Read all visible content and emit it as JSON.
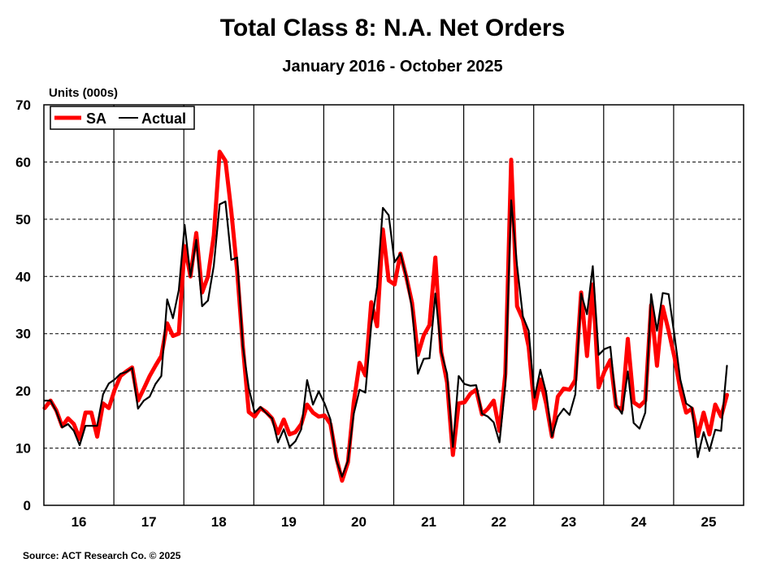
{
  "chart_data": {
    "type": "line",
    "title": "Total Class 8: N.A. Net Orders",
    "subtitle": "January 2016 - October 2025",
    "ylabel": "Units (000s)",
    "xlabel": "",
    "source": "Source: ACT Research Co. © 2025",
    "ylim": [
      0,
      70
    ],
    "yticks": [
      0,
      10,
      20,
      30,
      40,
      50,
      60,
      70
    ],
    "xlim": [
      "2016-01",
      "2025-12"
    ],
    "x_tick_labels": [
      "16",
      "17",
      "18",
      "19",
      "20",
      "21",
      "22",
      "23",
      "24",
      "25"
    ],
    "x_start": "2016-01",
    "frequency": "monthly",
    "grid": "horizontal dashed, vertical solid at year boundaries",
    "legend_position": "top-left",
    "series": [
      {
        "name": "SA",
        "color": "#ff0000",
        "values": [
          17,
          18.3,
          16.6,
          13.8,
          15.2,
          14.2,
          11.6,
          16.2,
          16.2,
          12,
          17.8,
          17,
          20.2,
          22.6,
          23.4,
          24.1,
          18.3,
          20.4,
          22.6,
          24.4,
          26.1,
          31.8,
          29.6,
          30,
          45.3,
          40,
          47.6,
          37.2,
          40,
          47.2,
          61.8,
          60.2,
          51.4,
          41,
          27.7,
          16.3,
          15.5,
          17,
          16.3,
          15.2,
          12.6,
          15,
          12.4,
          12.8,
          14.2,
          17.6,
          16.2,
          15.5,
          15.7,
          14.2,
          8.4,
          4.3,
          7.5,
          18,
          24.9,
          22.7,
          35.5,
          31.3,
          48.2,
          39.3,
          38.6,
          44,
          40,
          35.4,
          26.3,
          29.7,
          31.5,
          43.3,
          26.8,
          21.5,
          8.8,
          17.8,
          18,
          19.5,
          20.2,
          15.9,
          16.9,
          18.3,
          13,
          23,
          60.4,
          34.8,
          32.5,
          27.7,
          16.9,
          22,
          17.8,
          12,
          19,
          20.4,
          20.2,
          21.9,
          37.2,
          26.1,
          38.6,
          20.6,
          23.4,
          25.4,
          17.3,
          16.7,
          29.1,
          18,
          17.3,
          18.3,
          35,
          24.4,
          34.7,
          30.5,
          25.9,
          20.2,
          16.2,
          16.9,
          12.1,
          16.2,
          12.4,
          17.6,
          15.5,
          19.3
        ]
      },
      {
        "name": "Actual",
        "color": "#000000",
        "values": [
          18.3,
          18.3,
          16.4,
          13.6,
          14.2,
          13,
          10.5,
          13.9,
          13.9,
          13.9,
          19.4,
          21.3,
          22,
          23,
          23.3,
          24,
          16.9,
          18.3,
          19,
          21.2,
          22.6,
          36,
          32.7,
          37.6,
          49,
          40,
          46.4,
          34.8,
          35.8,
          41.9,
          52.6,
          53.1,
          42.9,
          43.3,
          27.7,
          20.5,
          16.2,
          17.2,
          16.1,
          15.2,
          11,
          13.3,
          10.2,
          11.2,
          13.3,
          21.9,
          17.6,
          19.9,
          17.8,
          15,
          7.9,
          5,
          7.8,
          16,
          20.2,
          19.7,
          31.5,
          38.2,
          52,
          50.7,
          42.5,
          44,
          40,
          34.4,
          23,
          25.6,
          25.7,
          37,
          26.8,
          23,
          10.2,
          22.6,
          21.2,
          20.9,
          21,
          16,
          15.5,
          14.5,
          11,
          21.1,
          53.3,
          41.9,
          33,
          30.5,
          18.8,
          23.7,
          19.7,
          12,
          15.5,
          16.9,
          15.8,
          19.4,
          37,
          33.4,
          41.8,
          26.3,
          27.3,
          27.7,
          17.6,
          16,
          23.4,
          14.4,
          13.4,
          16.2,
          36.9,
          30.5,
          37.1,
          36.9,
          29.7,
          22,
          17.8,
          17.1,
          8.4,
          12.8,
          9.5,
          13.2,
          13,
          24.4
        ]
      }
    ]
  }
}
